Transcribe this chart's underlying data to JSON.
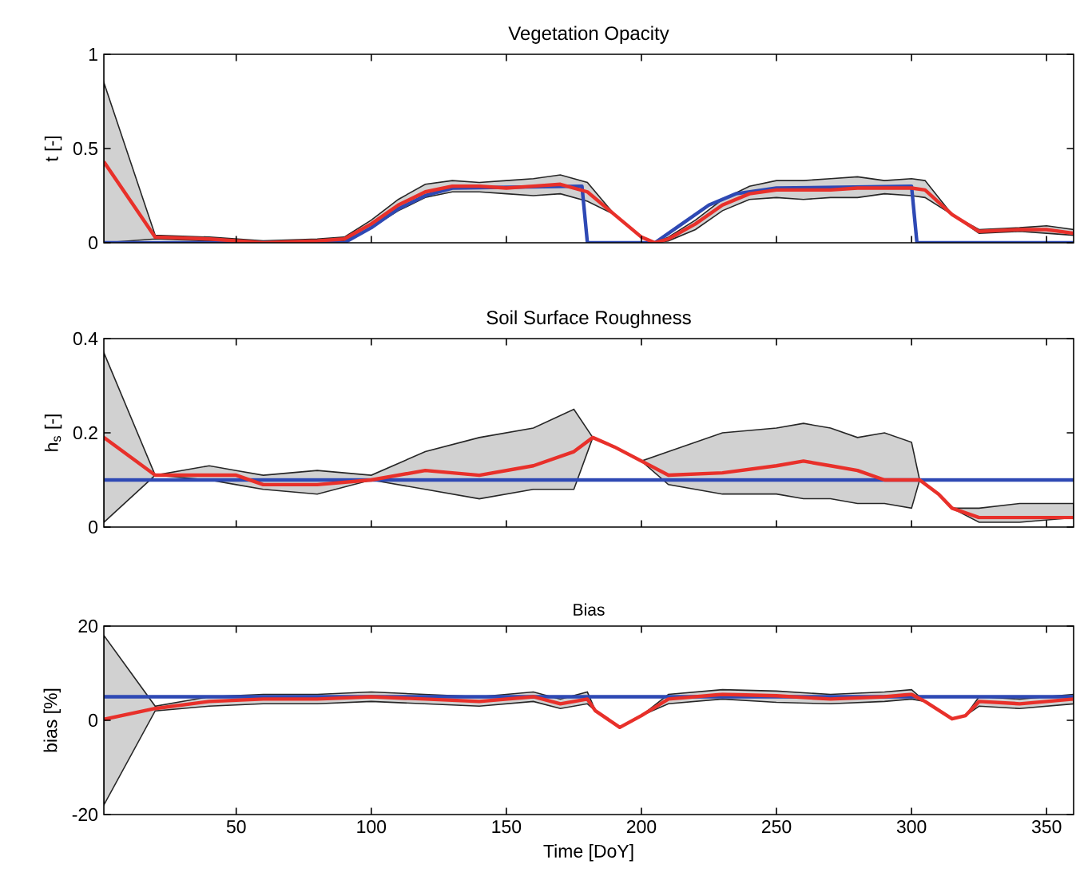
{
  "chart_data": [
    {
      "type": "line",
      "title": "Vegetation Opacity",
      "ylabel": "t [-]",
      "xlim": [
        1,
        360
      ],
      "ylim": [
        0,
        1
      ],
      "xticks": [
        50,
        100,
        150,
        200,
        250,
        300,
        350
      ],
      "yticks": [
        0,
        0.5,
        1
      ],
      "tick_labels": "y",
      "series": [
        {
          "color": "#2e49b4",
          "x": [
            1,
            90,
            100,
            110,
            120,
            130,
            178,
            180,
            205,
            215,
            225,
            235,
            250,
            300,
            302,
            360
          ],
          "values": [
            0,
            0,
            0.08,
            0.18,
            0.25,
            0.29,
            0.3,
            0,
            0,
            0.1,
            0.2,
            0.26,
            0.29,
            0.3,
            0,
            0
          ]
        },
        {
          "color": "#e8302a",
          "x": [
            1,
            20,
            40,
            60,
            80,
            90,
            100,
            110,
            120,
            130,
            140,
            150,
            160,
            170,
            180,
            190,
            200,
            205,
            210,
            220,
            230,
            240,
            250,
            260,
            270,
            280,
            290,
            300,
            305,
            315,
            325,
            340,
            350,
            360
          ],
          "values": [
            0.43,
            0.03,
            0.02,
            0,
            0.01,
            0.02,
            0.1,
            0.2,
            0.27,
            0.3,
            0.3,
            0.29,
            0.3,
            0.31,
            0.27,
            0.15,
            0.03,
            0,
            0.02,
            0.1,
            0.2,
            0.26,
            0.28,
            0.28,
            0.28,
            0.29,
            0.29,
            0.29,
            0.28,
            0.15,
            0.06,
            0.07,
            0.07,
            0.05
          ],
          "lower": [
            0,
            0.02,
            0.01,
            0,
            0,
            0.01,
            0.08,
            0.17,
            0.24,
            0.27,
            0.27,
            0.26,
            0.25,
            0.26,
            0.22,
            0.15,
            0.03,
            0,
            0.01,
            0.07,
            0.17,
            0.23,
            0.24,
            0.23,
            0.24,
            0.24,
            0.26,
            0.25,
            0.24,
            0.15,
            0.05,
            0.06,
            0.05,
            0.04
          ],
          "upper": [
            0.85,
            0.04,
            0.03,
            0.01,
            0.02,
            0.03,
            0.12,
            0.23,
            0.31,
            0.33,
            0.32,
            0.33,
            0.34,
            0.36,
            0.32,
            0.15,
            0.03,
            0,
            0.03,
            0.12,
            0.23,
            0.3,
            0.33,
            0.33,
            0.34,
            0.35,
            0.33,
            0.34,
            0.33,
            0.15,
            0.07,
            0.08,
            0.09,
            0.07
          ]
        }
      ]
    },
    {
      "type": "line",
      "title": "Soil Surface Roughness",
      "ylabel": "h$_{s}$ [-]",
      "xlim": [
        1,
        360
      ],
      "ylim": [
        0,
        0.4
      ],
      "xticks": [
        50,
        100,
        150,
        200,
        250,
        300,
        350
      ],
      "yticks": [
        0,
        0.2,
        0.4
      ],
      "tick_labels": "y",
      "series": [
        {
          "color": "#2e49b4",
          "x": [
            1,
            360
          ],
          "values": [
            0.1,
            0.1
          ]
        },
        {
          "color": "#e8302a",
          "x": [
            1,
            20,
            40,
            50,
            60,
            80,
            100,
            120,
            140,
            160,
            175,
            182,
            190,
            200,
            210,
            230,
            250,
            260,
            270,
            280,
            290,
            300,
            303,
            310,
            315,
            325,
            340,
            360
          ],
          "values": [
            0.19,
            0.11,
            0.11,
            0.11,
            0.09,
            0.09,
            0.1,
            0.12,
            0.11,
            0.13,
            0.16,
            0.19,
            0.17,
            0.14,
            0.11,
            0.115,
            0.13,
            0.14,
            0.13,
            0.12,
            0.1,
            0.1,
            0.1,
            0.07,
            0.04,
            0.02,
            0.02,
            0.02
          ],
          "lower": [
            0.01,
            0.11,
            0.1,
            0.09,
            0.08,
            0.07,
            0.1,
            0.08,
            0.06,
            0.08,
            0.08,
            0.19,
            0.17,
            0.14,
            0.09,
            0.07,
            0.07,
            0.06,
            0.06,
            0.05,
            0.05,
            0.04,
            0.1,
            0.07,
            0.04,
            0.01,
            0.01,
            0.02
          ],
          "upper": [
            0.37,
            0.11,
            0.13,
            0.12,
            0.11,
            0.12,
            0.11,
            0.16,
            0.19,
            0.21,
            0.25,
            0.19,
            0.17,
            0.14,
            0.16,
            0.2,
            0.21,
            0.22,
            0.21,
            0.19,
            0.2,
            0.18,
            0.1,
            0.07,
            0.04,
            0.04,
            0.05,
            0.05
          ]
        }
      ]
    },
    {
      "type": "line",
      "title": "Bias",
      "xlabel": "Time [DoY]",
      "ylabel": "bias [%]",
      "xlim": [
        1,
        360
      ],
      "ylim": [
        -20,
        20
      ],
      "xticks": [
        50,
        100,
        150,
        200,
        250,
        300,
        350
      ],
      "yticks": [
        -20,
        0,
        20
      ],
      "series": [
        {
          "color": "#2e49b4",
          "x": [
            1,
            360
          ],
          "values": [
            5,
            5
          ]
        },
        {
          "color": "#e8302a",
          "x": [
            1,
            20,
            40,
            60,
            80,
            100,
            120,
            140,
            160,
            170,
            180,
            183,
            192,
            200,
            210,
            230,
            250,
            270,
            290,
            300,
            305,
            315,
            320,
            325,
            340,
            360
          ],
          "values": [
            0.2,
            2.5,
            4,
            4.5,
            4.5,
            5,
            4.5,
            4,
            5,
            3.5,
            4.5,
            2,
            -1.5,
            1,
            4.5,
            5.5,
            5.2,
            4.5,
            5,
            5.5,
            4,
            0.3,
            1,
            4,
            3.5,
            4.5
          ],
          "lower": [
            -18,
            2,
            3,
            3.5,
            3.5,
            4,
            3.5,
            3,
            4,
            2.5,
            3.5,
            2,
            -1.5,
            1,
            3.5,
            4.5,
            3.8,
            3.5,
            4,
            4.5,
            4,
            0.3,
            1,
            3,
            2.5,
            3.5
          ],
          "upper": [
            18,
            3,
            5,
            5.5,
            5.5,
            6,
            5.5,
            5,
            6,
            4.5,
            6,
            2,
            -1.5,
            1,
            5.5,
            6.5,
            6.2,
            5.5,
            6,
            6.5,
            4,
            0.3,
            1,
            5,
            4.5,
            5.5
          ]
        }
      ]
    }
  ]
}
